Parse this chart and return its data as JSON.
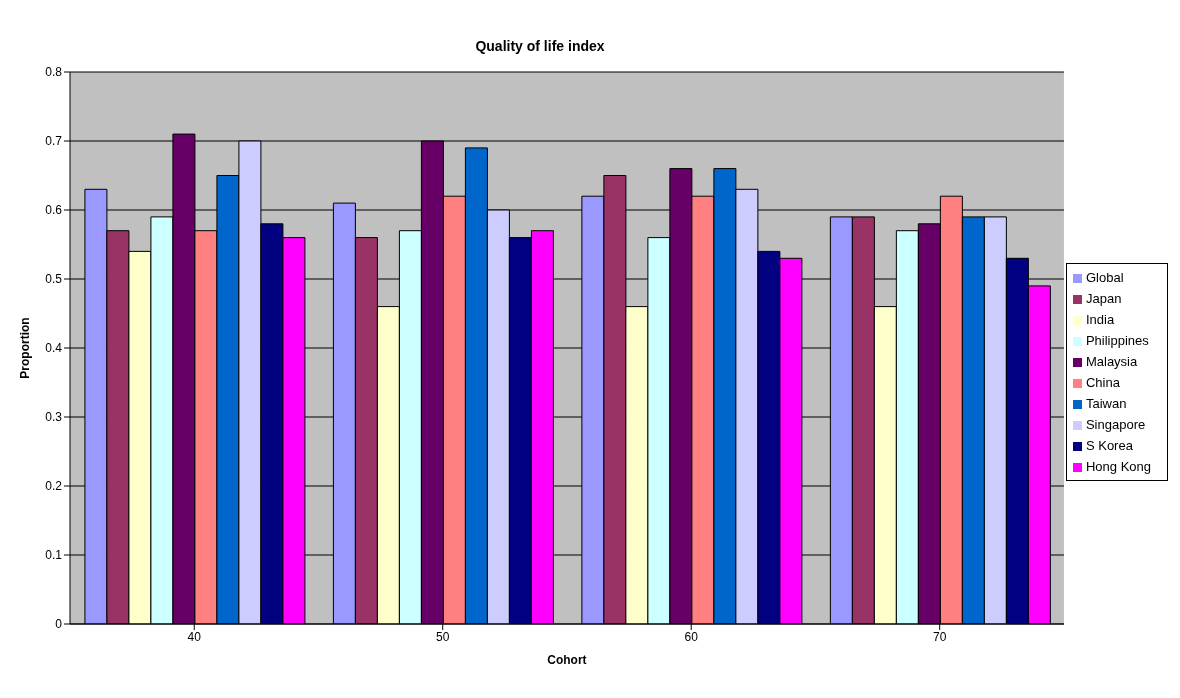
{
  "chart_data": {
    "type": "bar",
    "title": "Quality of life index",
    "xlabel": "Cohort",
    "ylabel": "Proportion",
    "categories": [
      "40",
      "50",
      "60",
      "70"
    ],
    "series": [
      {
        "name": "Global",
        "color": "#9999ff",
        "values": [
          0.63,
          0.61,
          0.62,
          0.59
        ]
      },
      {
        "name": "Japan",
        "color": "#993366",
        "values": [
          0.57,
          0.56,
          0.65,
          0.59
        ]
      },
      {
        "name": "India",
        "color": "#ffffcc",
        "values": [
          0.54,
          0.46,
          0.46,
          0.46
        ]
      },
      {
        "name": "Philippines",
        "color": "#ccffff",
        "values": [
          0.59,
          0.57,
          0.56,
          0.57
        ]
      },
      {
        "name": "Malaysia",
        "color": "#660066",
        "values": [
          0.71,
          0.7,
          0.66,
          0.58
        ]
      },
      {
        "name": "China",
        "color": "#ff8080",
        "values": [
          0.57,
          0.62,
          0.62,
          0.62
        ]
      },
      {
        "name": "Taiwan",
        "color": "#0066cc",
        "values": [
          0.65,
          0.69,
          0.66,
          0.59
        ]
      },
      {
        "name": "Singapore",
        "color": "#ccccff",
        "values": [
          0.7,
          0.6,
          0.63,
          0.59
        ]
      },
      {
        "name": "S Korea",
        "color": "#000080",
        "values": [
          0.58,
          0.56,
          0.54,
          0.53
        ]
      },
      {
        "name": "Hong Kong",
        "color": "#ff00ff",
        "values": [
          0.56,
          0.57,
          0.53,
          0.49
        ]
      }
    ],
    "ylim": [
      0,
      0.8
    ],
    "yticks": [
      0,
      0.1,
      0.2,
      0.3,
      0.4,
      0.5,
      0.6,
      0.7,
      0.8
    ],
    "grid": "y",
    "legend": "right"
  }
}
